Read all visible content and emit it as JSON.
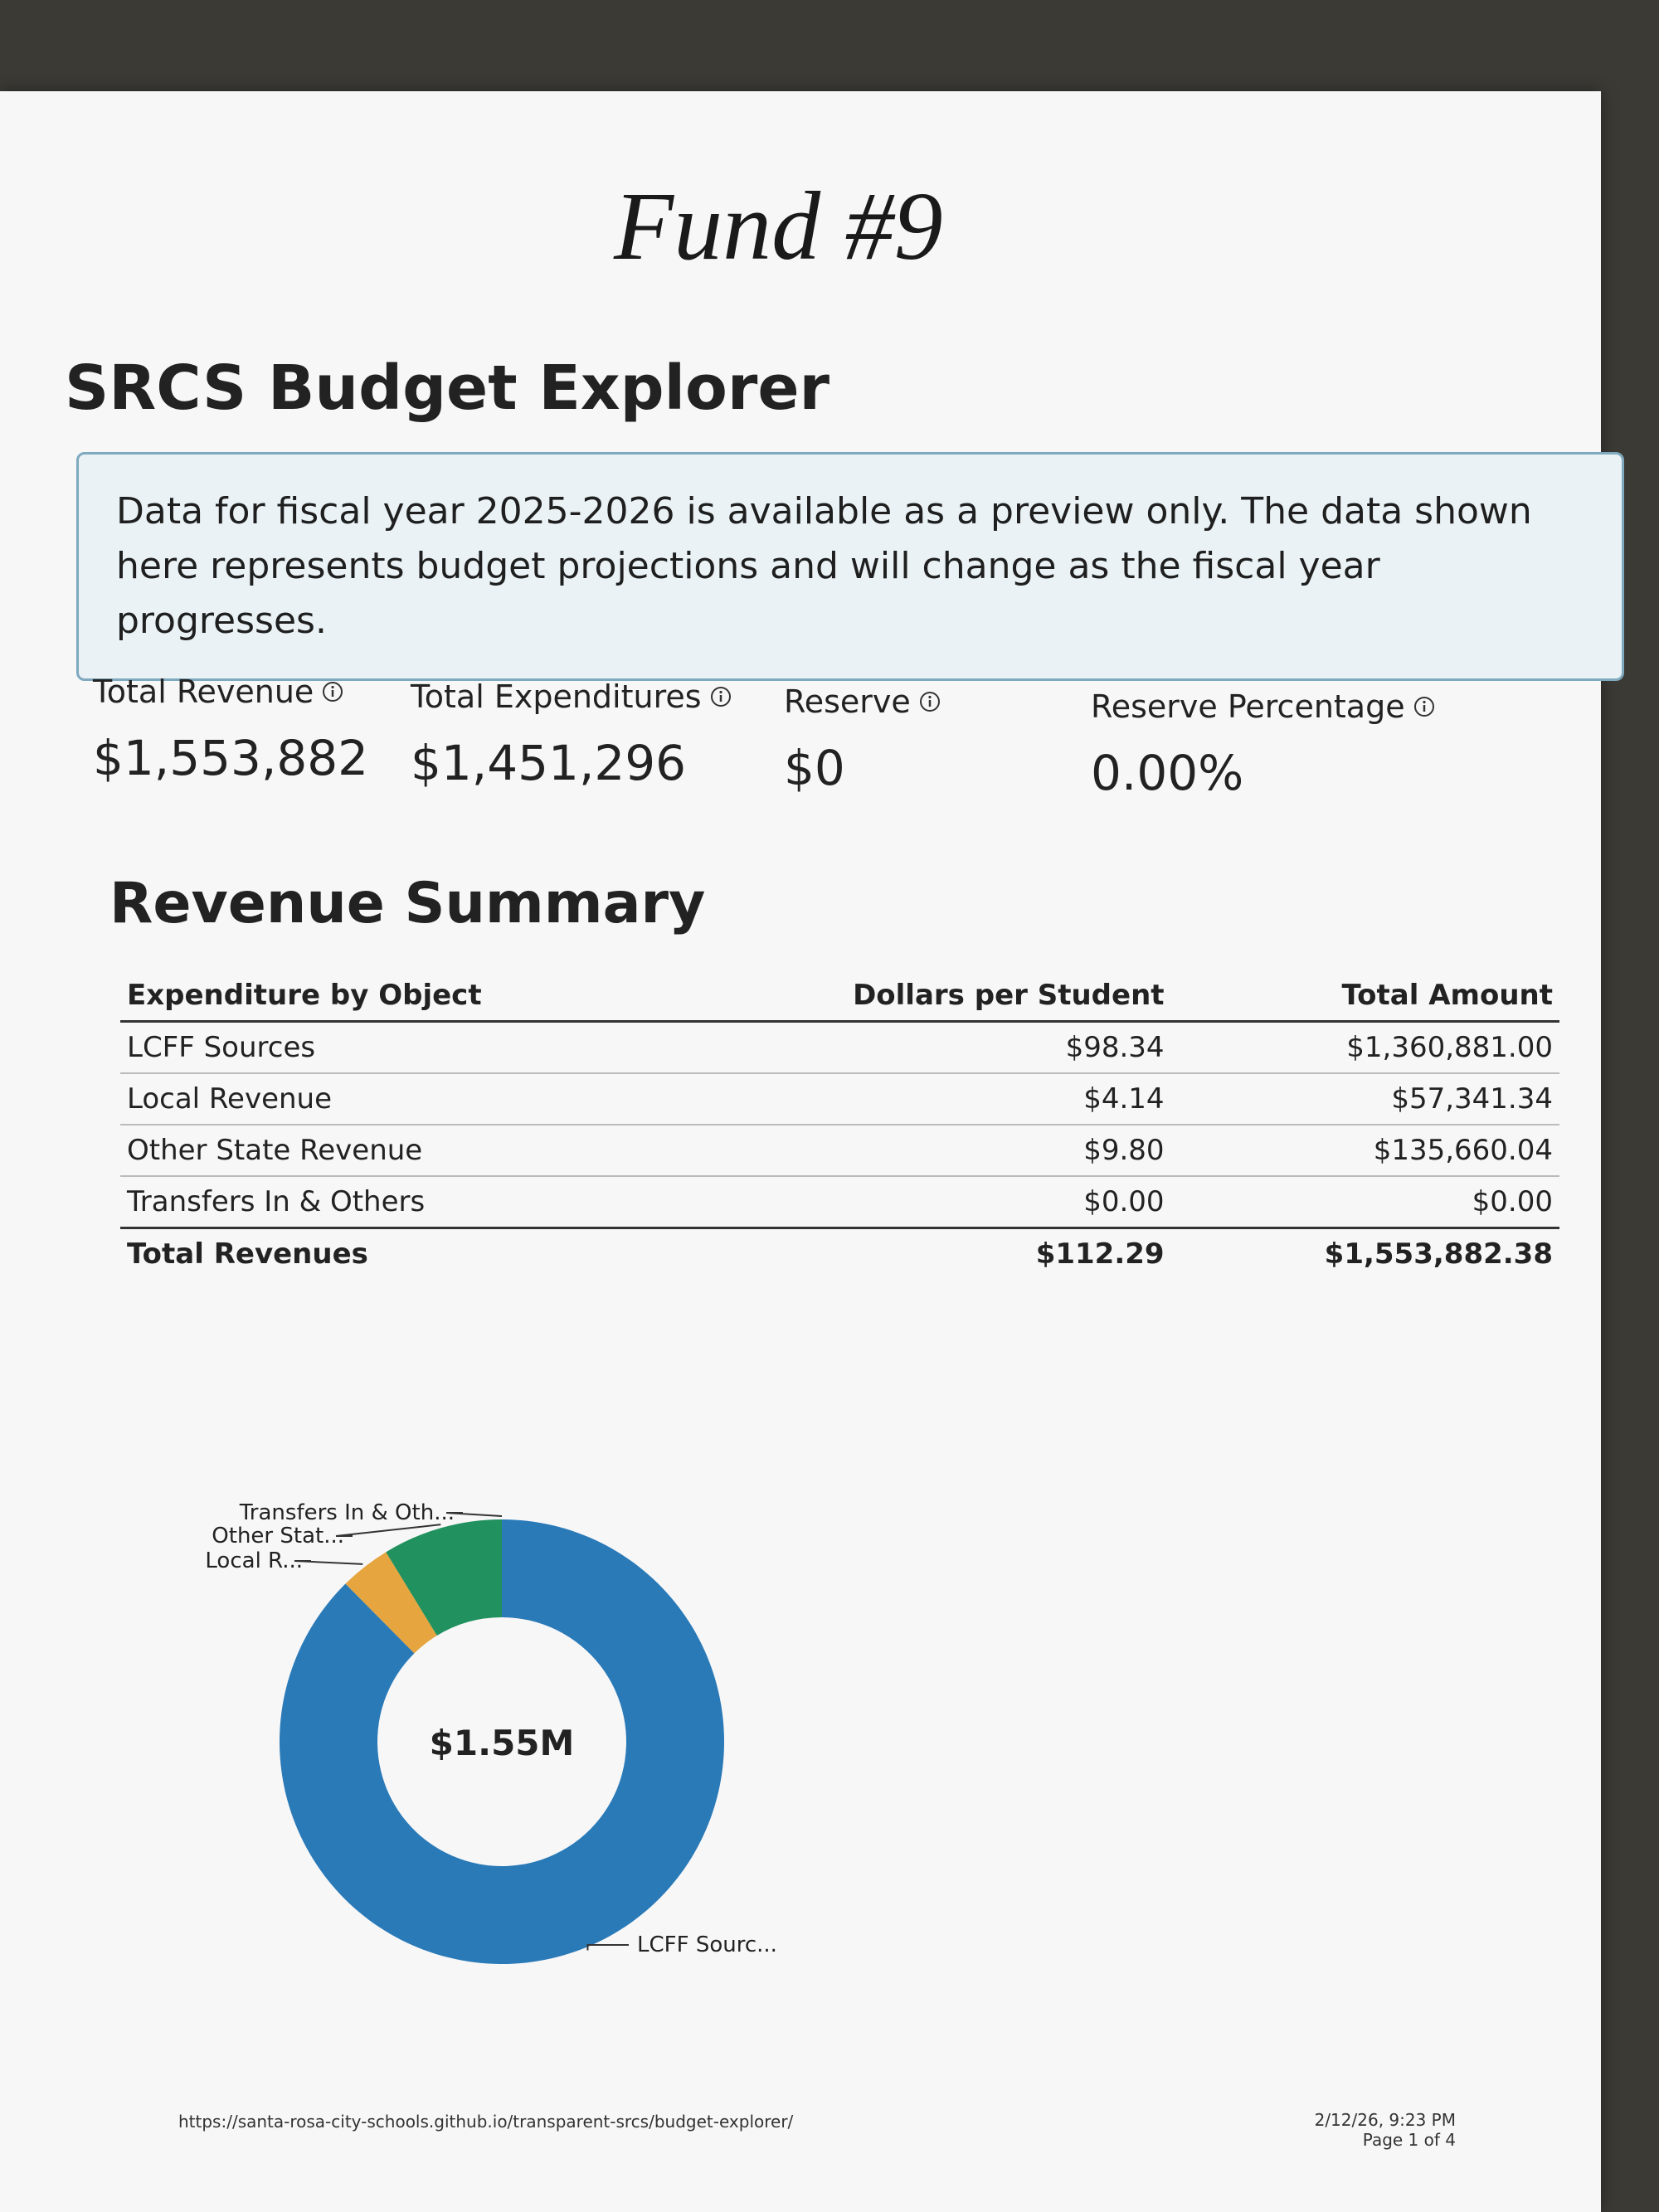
{
  "handwritten_note": "Fund #9",
  "header": {
    "title": "SRCS Budget Explorer"
  },
  "notice": "Data for fiscal year 2025-2026 is available as a preview only. The data shown here represents budget projections and will change as the fiscal year progresses.",
  "metrics": [
    {
      "label": "Total Revenue",
      "value": "$1,553,882"
    },
    {
      "label": "Total Expenditures",
      "value": "$1,451,296"
    },
    {
      "label": "Reserve",
      "value": "$0"
    },
    {
      "label": "Reserve Percentage",
      "value": "0.00%"
    }
  ],
  "section_title": "Revenue Summary",
  "table": {
    "header": [
      "Expenditure by Object",
      "Dollars per Student",
      "Total Amount"
    ],
    "rows": [
      [
        "LCFF Sources",
        "$98.34",
        "$1,360,881.00"
      ],
      [
        "Local Revenue",
        "$4.14",
        "$57,341.34"
      ],
      [
        "Other State Revenue",
        "$9.80",
        "$135,660.04"
      ],
      [
        "Transfers In & Others",
        "$0.00",
        "$0.00"
      ]
    ],
    "total": [
      "Total Revenues",
      "$112.29",
      "$1,553,882.38"
    ]
  },
  "chart_data": {
    "type": "donut",
    "center_label": "$1.55M",
    "categories": [
      "LCFF Sourc...",
      "Local R...",
      "Other Stat...",
      "Transfers In & Oth..."
    ],
    "values": [
      1360881.0,
      57341.34,
      135660.04,
      0.0
    ],
    "colors": [
      "#2a7ab8",
      "#e6a53e",
      "#21915f",
      "#d9534f"
    ]
  },
  "footer": {
    "url": "https://santa-rosa-city-schools.github.io/transparent-srcs/budget-explorer/",
    "date": "2/12/26, 9:23 PM",
    "page": "Page 1 of 4"
  }
}
